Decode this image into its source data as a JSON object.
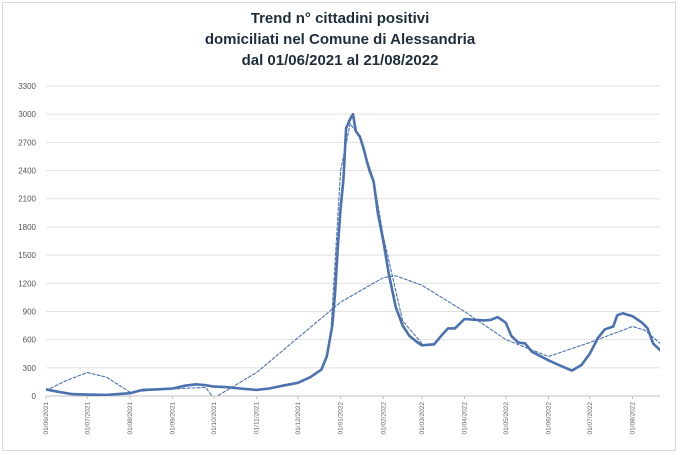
{
  "chart_data": {
    "type": "line",
    "title_lines": [
      "Trend n° cittadini positivi",
      "domiciliati nel Comune di Alessandria",
      "dal 01/06/2021 al 21/08/2022"
    ],
    "xlabel": "",
    "ylabel": "",
    "ylim": [
      0,
      3300
    ],
    "yticks": [
      0,
      300,
      600,
      900,
      1200,
      1500,
      1800,
      2100,
      2400,
      2700,
      3000,
      3300
    ],
    "xticks": [
      "01/06/2021",
      "01/07/2021",
      "01/08/2021",
      "01/09/2021",
      "01/10/2021",
      "01/11/2021",
      "01/12/2021",
      "01/01/2022",
      "01/02/2022",
      "01/03/2022",
      "01/04/2022",
      "01/05/2022",
      "01/06/2022",
      "01/07/2022",
      "01/08/2022"
    ],
    "x_range": [
      "01/06/2021",
      "21/08/2022"
    ],
    "grid": true,
    "series": [
      {
        "color": "#4a72b0",
        "style": "solid",
        "points": [
          [
            "01/06/2021",
            70
          ],
          [
            "10/06/2021",
            45
          ],
          [
            "20/06/2021",
            20
          ],
          [
            "01/07/2021",
            15
          ],
          [
            "15/07/2021",
            12
          ],
          [
            "01/08/2021",
            30
          ],
          [
            "10/08/2021",
            65
          ],
          [
            "20/08/2021",
            70
          ],
          [
            "01/09/2021",
            80
          ],
          [
            "10/09/2021",
            110
          ],
          [
            "18/09/2021",
            125
          ],
          [
            "25/09/2021",
            115
          ],
          [
            "01/10/2021",
            100
          ],
          [
            "10/10/2021",
            95
          ],
          [
            "20/10/2021",
            80
          ],
          [
            "01/11/2021",
            65
          ],
          [
            "10/11/2021",
            80
          ],
          [
            "20/11/2021",
            110
          ],
          [
            "01/12/2021",
            140
          ],
          [
            "10/12/2021",
            200
          ],
          [
            "18/12/2021",
            280
          ],
          [
            "22/12/2021",
            420
          ],
          [
            "26/12/2021",
            750
          ],
          [
            "28/12/2021",
            1100
          ],
          [
            "30/12/2021",
            1600
          ],
          [
            "01/01/2022",
            2000
          ],
          [
            "03/01/2022",
            2300
          ],
          [
            "05/01/2022",
            2850
          ],
          [
            "08/01/2022",
            2950
          ],
          [
            "10/01/2022",
            3000
          ],
          [
            "12/01/2022",
            2820
          ],
          [
            "15/01/2022",
            2760
          ],
          [
            "18/01/2022",
            2620
          ],
          [
            "20/01/2022",
            2500
          ],
          [
            "22/01/2022",
            2400
          ],
          [
            "25/01/2022",
            2280
          ],
          [
            "28/01/2022",
            1950
          ],
          [
            "01/02/2022",
            1650
          ],
          [
            "05/02/2022",
            1300
          ],
          [
            "10/02/2022",
            950
          ],
          [
            "15/02/2022",
            750
          ],
          [
            "20/02/2022",
            640
          ],
          [
            "25/02/2022",
            580
          ],
          [
            "01/03/2022",
            540
          ],
          [
            "10/03/2022",
            550
          ],
          [
            "15/03/2022",
            640
          ],
          [
            "20/03/2022",
            720
          ],
          [
            "25/03/2022",
            720
          ],
          [
            "01/04/2022",
            820
          ],
          [
            "10/04/2022",
            810
          ],
          [
            "15/04/2022",
            805
          ],
          [
            "20/04/2022",
            810
          ],
          [
            "25/04/2022",
            840
          ],
          [
            "01/05/2022",
            780
          ],
          [
            "05/05/2022",
            640
          ],
          [
            "10/05/2022",
            570
          ],
          [
            "15/05/2022",
            560
          ],
          [
            "20/05/2022",
            470
          ],
          [
            "01/06/2022",
            380
          ],
          [
            "10/06/2022",
            320
          ],
          [
            "18/06/2022",
            270
          ],
          [
            "25/06/2022",
            330
          ],
          [
            "01/07/2022",
            450
          ],
          [
            "07/07/2022",
            620
          ],
          [
            "12/07/2022",
            710
          ],
          [
            "18/07/2022",
            740
          ],
          [
            "21/07/2022",
            860
          ],
          [
            "25/07/2022",
            880
          ],
          [
            "01/08/2022",
            850
          ],
          [
            "08/08/2022",
            780
          ],
          [
            "12/08/2022",
            720
          ],
          [
            "16/08/2022",
            560
          ],
          [
            "21/08/2022",
            490
          ]
        ]
      },
      {
        "color": "#4a72b0",
        "style": "dashed",
        "points": [
          [
            "01/06/2021",
            60
          ],
          [
            "15/06/2021",
            160
          ],
          [
            "01/07/2021",
            250
          ],
          [
            "15/07/2021",
            200
          ],
          [
            "01/08/2021",
            40
          ],
          [
            "15/08/2021",
            60
          ],
          [
            "01/09/2021",
            75
          ],
          [
            "15/09/2021",
            85
          ],
          [
            "25/09/2021",
            90
          ],
          [
            "01/10/2021",
            -30
          ]
        ]
      },
      {
        "color": "#4a72b0",
        "style": "dashed",
        "points": [
          [
            "01/10/2021",
            -20
          ],
          [
            "01/11/2021",
            250
          ],
          [
            "01/12/2021",
            620
          ],
          [
            "01/01/2022",
            1000
          ],
          [
            "01/02/2022",
            1260
          ],
          [
            "10/02/2022",
            1280
          ],
          [
            "01/03/2022",
            1180
          ],
          [
            "01/04/2022",
            900
          ],
          [
            "01/05/2022",
            600
          ],
          [
            "01/06/2022",
            420
          ],
          [
            "01/07/2022",
            570
          ],
          [
            "01/08/2022",
            740
          ],
          [
            "10/08/2022",
            700
          ],
          [
            "21/08/2022",
            560
          ]
        ]
      },
      {
        "color": "#4a72b0",
        "style": "dashed",
        "points": [
          [
            "25/12/2021",
            700
          ],
          [
            "01/01/2022",
            2400
          ],
          [
            "08/01/2022",
            2900
          ],
          [
            "15/01/2022",
            2750
          ],
          [
            "25/01/2022",
            2300
          ],
          [
            "01/02/2022",
            1700
          ],
          [
            "15/02/2022",
            800
          ],
          [
            "01/03/2022",
            560
          ]
        ]
      }
    ]
  }
}
